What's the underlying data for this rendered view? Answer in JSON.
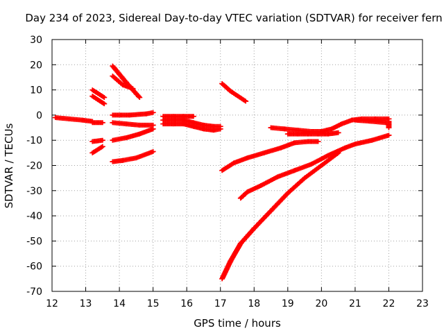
{
  "chart_data": {
    "type": "scatter",
    "title": "Day 234 of 2023, Sidereal Day-to-day VTEC variation (SDTVAR) for receiver fern",
    "xlabel": "GPS time / hours",
    "ylabel": "SDTVAR / TECUs",
    "xlim": [
      12,
      23
    ],
    "ylim": [
      -70,
      30
    ],
    "xticks": [
      "12",
      "13",
      "14",
      "15",
      "16",
      "17",
      "18",
      "19",
      "20",
      "21",
      "22",
      "23"
    ],
    "yticks": [
      "30",
      "20",
      "10",
      "0",
      "-10",
      "-20",
      "-30",
      "-40",
      "-50",
      "-60",
      "-70"
    ],
    "grid": true,
    "marker": "plus",
    "color": "#ff0000",
    "tracks": [
      {
        "x": [
          12.1,
          12.5,
          12.9,
          13.2
        ],
        "y": [
          -1,
          -1.5,
          -2,
          -2.5
        ]
      },
      {
        "x": [
          13.2,
          13.5
        ],
        "y": [
          -3,
          -3
        ]
      },
      {
        "x": [
          13.2,
          13.55
        ],
        "y": [
          10,
          7
        ]
      },
      {
        "x": [
          13.2,
          13.55
        ],
        "y": [
          7.5,
          4.5
        ]
      },
      {
        "x": [
          13.2,
          13.5
        ],
        "y": [
          -10.5,
          -10
        ]
      },
      {
        "x": [
          13.2,
          13.5
        ],
        "y": [
          -15,
          -12.5
        ]
      },
      {
        "x": [
          13.8,
          14.2,
          14.6
        ],
        "y": [
          19.5,
          13,
          7
        ]
      },
      {
        "x": [
          13.8,
          14.1,
          14.4
        ],
        "y": [
          15.5,
          12,
          10.5
        ]
      },
      {
        "x": [
          13.8,
          14.3,
          14.8,
          15.0
        ],
        "y": [
          0,
          0,
          0.5,
          1
        ]
      },
      {
        "x": [
          13.8,
          14.2,
          14.6,
          15.0
        ],
        "y": [
          -3,
          -3.5,
          -4,
          -4
        ]
      },
      {
        "x": [
          13.8,
          14.2,
          14.6,
          15.0
        ],
        "y": [
          -10,
          -9,
          -7.5,
          -5.5
        ]
      },
      {
        "x": [
          13.8,
          14.1,
          14.5,
          15.0
        ],
        "y": [
          -18.5,
          -18,
          -17,
          -14.5
        ]
      },
      {
        "x": [
          15.3,
          15.6,
          15.9,
          16.2
        ],
        "y": [
          -0.5,
          -0.5,
          -0.5,
          -0.5
        ]
      },
      {
        "x": [
          15.3,
          15.6,
          15.9,
          16.2,
          16.5,
          16.8,
          17.0
        ],
        "y": [
          -2,
          -2,
          -2,
          -3,
          -4,
          -4.5,
          -4.5
        ]
      },
      {
        "x": [
          15.3,
          15.6,
          15.9,
          16.2,
          16.5,
          16.8,
          17.0
        ],
        "y": [
          -3.5,
          -3.5,
          -3.5,
          -4.5,
          -5.5,
          -6,
          -5.5
        ]
      },
      {
        "x": [
          17.05,
          17.3,
          17.75
        ],
        "y": [
          12.5,
          9.5,
          5.5
        ]
      },
      {
        "x": [
          17.05,
          17.4,
          17.8,
          18.3,
          18.8,
          19.2,
          19.6,
          19.9
        ],
        "y": [
          -22,
          -19,
          -17,
          -15,
          -13,
          -11,
          -10.5,
          -10.5
        ]
      },
      {
        "x": [
          17.05,
          17.3,
          17.6,
          18.0,
          18.5,
          19.0,
          19.5,
          20.0,
          20.5
        ],
        "y": [
          -65,
          -58,
          -51,
          -45,
          -38,
          -31,
          -25,
          -20,
          -15
        ]
      },
      {
        "x": [
          17.6,
          17.8,
          18.2,
          18.7,
          19.2,
          19.7,
          20.2,
          20.7,
          21.0,
          21.5,
          22.0
        ],
        "y": [
          -33,
          -30.5,
          -28,
          -24.5,
          -22,
          -19.5,
          -16,
          -13,
          -11.5,
          -10,
          -8
        ]
      },
      {
        "x": [
          18.5,
          18.9,
          19.3,
          19.7,
          20.0,
          20.3,
          20.6,
          20.9,
          21.2,
          21.6,
          22.0
        ],
        "y": [
          -5,
          -5.5,
          -6,
          -6.5,
          -6.5,
          -5.5,
          -3.5,
          -2,
          -1.5,
          -1.5,
          -1.5
        ]
      },
      {
        "x": [
          19.0,
          19.3,
          19.6,
          19.9,
          20.2,
          20.5
        ],
        "y": [
          -7.5,
          -7.5,
          -7.5,
          -7.5,
          -7.5,
          -7
        ]
      },
      {
        "x": [
          21.0,
          21.5,
          21.9
        ],
        "y": [
          -2,
          -2.5,
          -3
        ]
      },
      {
        "x": [
          22.0,
          22.0
        ],
        "y": [
          -2.5,
          -5
        ]
      }
    ]
  }
}
